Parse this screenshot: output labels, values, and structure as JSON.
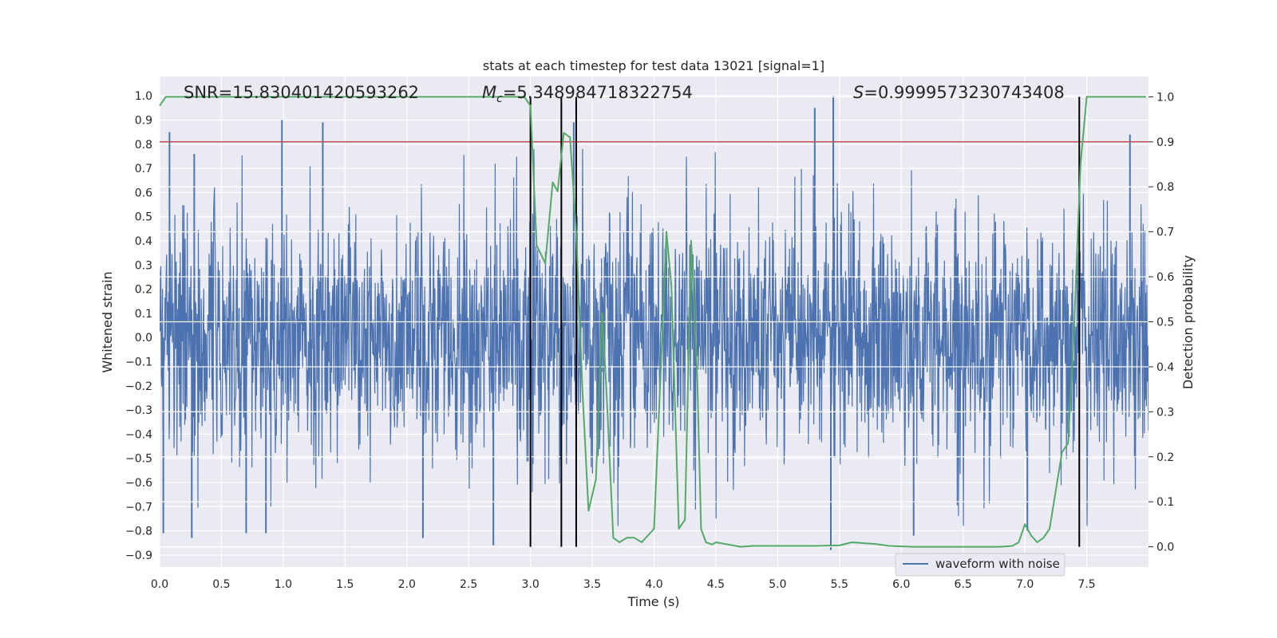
{
  "chart_data": {
    "type": "line",
    "title": "stats at each timestep for test data 13021 [signal=1]",
    "xlabel": "Time (s)",
    "ylabel": "Whitened strain",
    "ylabel_right": "Detection probability",
    "xlim": [
      0,
      8
    ],
    "ylim": [
      -0.95,
      1.08
    ],
    "ylim_right": [
      -0.045,
      1.045
    ],
    "x_ticks": [
      "0.0",
      "0.5",
      "1.0",
      "1.5",
      "2.0",
      "2.5",
      "3.0",
      "3.5",
      "4.0",
      "4.5",
      "5.0",
      "5.5",
      "6.0",
      "6.5",
      "7.0",
      "7.5"
    ],
    "y_ticks": [
      "1.0",
      "0.9",
      "0.8",
      "0.7",
      "0.6",
      "0.5",
      "0.4",
      "0.3",
      "0.2",
      "0.1",
      "0.0",
      "−0.1",
      "−0.2",
      "−0.3",
      "−0.4",
      "−0.5",
      "−0.6",
      "−0.7",
      "−0.8",
      "−0.9"
    ],
    "y_ticks_right": [
      "1.0",
      "0.9",
      "0.8",
      "0.7",
      "0.6",
      "0.5",
      "0.4",
      "0.3",
      "0.2",
      "0.1",
      "0.0"
    ],
    "annotations": {
      "snr": "SNR=15.830401420593262",
      "mc_symbol": "M",
      "mc_sub": "c",
      "mc_value": "=5.348984718322754",
      "s_symbol": "S",
      "s_value": "=0.9999573230743408"
    },
    "legend": {
      "label": "waveform with noise",
      "location": "lower-right"
    },
    "threshold_line": {
      "y_right": 0.9,
      "color": "#c44e52"
    },
    "vertical_lines_x": [
      3.0,
      3.25,
      3.37,
      7.44
    ],
    "waveform": {
      "name": "waveform with noise",
      "color": "#4c72b0",
      "amplitude_rms": 0.25,
      "peaks": [
        {
          "x": 0.08,
          "y": 0.85
        },
        {
          "x": 0.28,
          "y": 0.76
        },
        {
          "x": 0.99,
          "y": 0.9
        },
        {
          "x": 1.32,
          "y": 0.89
        },
        {
          "x": 3.35,
          "y": 0.89
        },
        {
          "x": 5.3,
          "y": 0.95
        },
        {
          "x": 5.45,
          "y": 1.0
        },
        {
          "x": 7.85,
          "y": 0.84
        },
        {
          "x": 0.03,
          "y": -0.81
        },
        {
          "x": 0.26,
          "y": -0.83
        },
        {
          "x": 0.7,
          "y": -0.81
        },
        {
          "x": 0.86,
          "y": -0.81
        },
        {
          "x": 2.13,
          "y": -0.83
        },
        {
          "x": 2.7,
          "y": -0.86
        },
        {
          "x": 5.43,
          "y": -0.88
        },
        {
          "x": 6.1,
          "y": -0.82
        },
        {
          "x": 7.02,
          "y": -0.8
        }
      ]
    },
    "series": [
      {
        "name": "Detection probability",
        "color": "#55a868",
        "axis": "right",
        "x": [
          0.0,
          0.05,
          0.5,
          1.0,
          1.5,
          2.0,
          2.5,
          2.9,
          2.95,
          3.0,
          3.05,
          3.12,
          3.18,
          3.22,
          3.27,
          3.32,
          3.37,
          3.42,
          3.47,
          3.53,
          3.58,
          3.62,
          3.67,
          3.72,
          3.78,
          3.84,
          3.9,
          4.0,
          4.06,
          4.1,
          4.14,
          4.2,
          4.25,
          4.3,
          4.35,
          4.38,
          4.42,
          4.47,
          4.5,
          4.6,
          4.7,
          4.8,
          5.0,
          5.3,
          5.5,
          5.6,
          5.7,
          5.8,
          5.9,
          6.1,
          6.5,
          6.8,
          6.9,
          6.95,
          7.0,
          7.05,
          7.1,
          7.15,
          7.2,
          7.3,
          7.35,
          7.4,
          7.45,
          7.5,
          7.55,
          7.8,
          7.98
        ],
        "y": [
          0.98,
          1.0,
          1.0,
          1.0,
          1.0,
          1.0,
          1.0,
          1.0,
          1.0,
          0.98,
          0.67,
          0.63,
          0.81,
          0.79,
          0.92,
          0.91,
          0.7,
          0.35,
          0.08,
          0.15,
          0.52,
          0.32,
          0.02,
          0.01,
          0.02,
          0.02,
          0.01,
          0.04,
          0.43,
          0.7,
          0.58,
          0.04,
          0.06,
          0.68,
          0.37,
          0.04,
          0.01,
          0.005,
          0.01,
          0.005,
          0.0,
          0.002,
          0.002,
          0.002,
          0.003,
          0.01,
          0.008,
          0.006,
          0.002,
          0.0,
          0.0,
          0.0,
          0.002,
          0.01,
          0.05,
          0.025,
          0.01,
          0.02,
          0.04,
          0.21,
          0.23,
          0.5,
          0.85,
          1.0,
          1.0,
          1.0,
          1.0
        ]
      }
    ]
  }
}
